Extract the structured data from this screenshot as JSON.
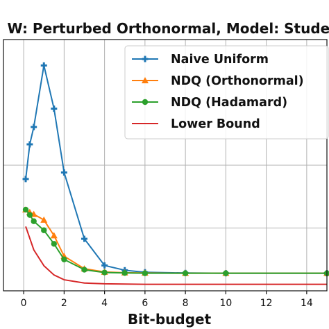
{
  "chart_data": {
    "type": "line",
    "title": "W: Perturbed Orthonormal, Model: Studen",
    "xlabel": "Bit-budget",
    "ylabel": "",
    "xlim": [
      -1.0,
      15.0
    ],
    "ylim": [
      0.0,
      1.0
    ],
    "xticks": [
      0,
      2,
      4,
      6,
      8,
      10,
      12,
      14
    ],
    "grid": true,
    "legend_position": "top-right",
    "series": [
      {
        "name": "Naive Uniform",
        "color": "#1f77b4",
        "marker": "plus",
        "x": [
          0.1,
          0.3,
          0.5,
          1.0,
          1.5,
          2.0,
          3.0,
          4.0,
          5.0,
          6.0,
          8.0,
          10.0,
          15.0
        ],
        "y": [
          0.445,
          0.583,
          0.652,
          0.897,
          0.725,
          0.471,
          0.207,
          0.101,
          0.082,
          0.074,
          0.071,
          0.07,
          0.07
        ]
      },
      {
        "name": "NDQ (Orthonormal)",
        "color": "#ff7f0e",
        "marker": "triangle",
        "x": [
          0.1,
          0.3,
          0.5,
          1.0,
          1.5,
          2.0,
          3.0,
          4.0,
          5.0,
          6.0,
          8.0,
          10.0,
          15.0
        ],
        "y": [
          0.323,
          0.313,
          0.305,
          0.282,
          0.22,
          0.138,
          0.088,
          0.075,
          0.072,
          0.071,
          0.07,
          0.07,
          0.07
        ]
      },
      {
        "name": "NDQ (Hadamard)",
        "color": "#2ca02c",
        "marker": "circle",
        "x": [
          0.1,
          0.3,
          0.5,
          1.0,
          1.5,
          2.0,
          3.0,
          4.0,
          5.0,
          6.0,
          8.0,
          10.0,
          15.0
        ],
        "y": [
          0.323,
          0.302,
          0.277,
          0.241,
          0.187,
          0.125,
          0.084,
          0.073,
          0.071,
          0.07,
          0.07,
          0.07,
          0.07
        ]
      },
      {
        "name": "Lower Bound",
        "color": "#d62728",
        "marker": "none",
        "x": [
          0.1,
          0.5,
          1.0,
          1.5,
          2.0,
          3.0,
          4.0,
          6.0,
          8.0,
          10.0,
          15.0
        ],
        "y": [
          0.256,
          0.163,
          0.1,
          0.063,
          0.044,
          0.031,
          0.028,
          0.026,
          0.026,
          0.026,
          0.026
        ]
      }
    ]
  }
}
